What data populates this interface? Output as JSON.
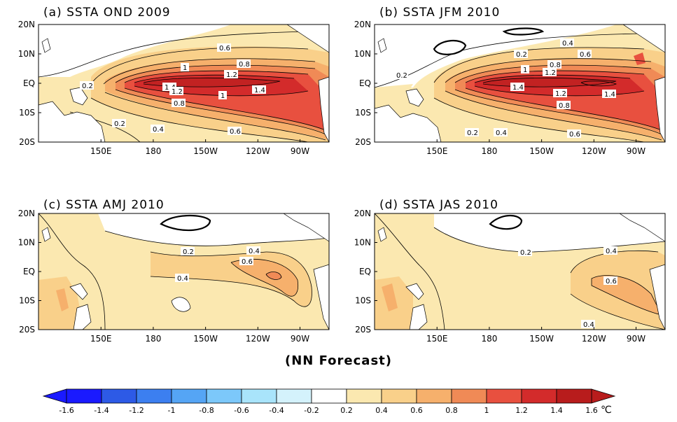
{
  "panels": [
    {
      "title": "(a) SSTA OND 2009"
    },
    {
      "title": "(b) SSTA JFM 2010"
    },
    {
      "title": "(c) SSTA AMJ 2010"
    },
    {
      "title": "(d) SSTA JAS 2010"
    }
  ],
  "lat_ticks": [
    "20N",
    "10N",
    "EQ",
    "10S",
    "20S"
  ],
  "lon_ticks": [
    "150E",
    "180",
    "150W",
    "120W",
    "90W"
  ],
  "footer": "(NN Forecast)",
  "colorbar": {
    "labels": [
      "-1.6",
      "-1.4",
      "-1.2",
      "-1",
      "-0.8",
      "-0.6",
      "-0.4",
      "-0.2",
      "0.2",
      "0.4",
      "0.6",
      "0.8",
      "1",
      "1.2",
      "1.4",
      "1.6"
    ],
    "unit": "℃",
    "colors": [
      "#1a1aff",
      "#2d5ae6",
      "#3c7ff0",
      "#55a5f5",
      "#7cc8fa",
      "#a9e4fb",
      "#d4f2fc",
      "#ffffff",
      "#fbe8b0",
      "#f9d08a",
      "#f6b06c",
      "#f08a56",
      "#e8503f",
      "#d32b2b",
      "#b81c1c"
    ]
  },
  "contour_labels": {
    "a": [
      "0.6",
      "0.8",
      "1",
      "1.2",
      "1.4",
      "1.2",
      "1",
      "0.8",
      "1.4",
      "0.2",
      "0.2",
      "0.4",
      "0.6"
    ],
    "b": [
      "0.4",
      "0.2",
      "0.6",
      "1",
      "0.8",
      "1.2",
      "0.2",
      "1.4",
      "1.2",
      "1.4",
      "0.8",
      "0.2",
      "0.4",
      "0.6"
    ],
    "c": [
      "0.2",
      "0.4",
      "0.6",
      "0.4"
    ],
    "d": [
      "0.2",
      "0.4",
      "0.6",
      "0.4"
    ]
  }
}
